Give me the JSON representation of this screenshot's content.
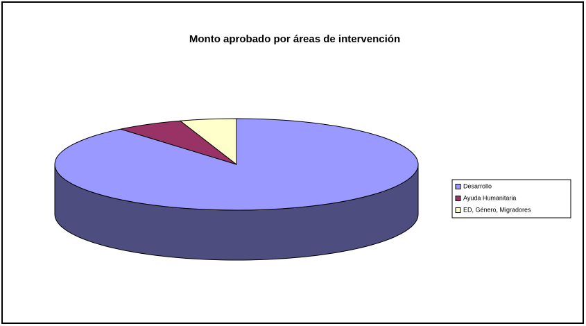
{
  "chart_data": {
    "type": "pie",
    "title": "Monto aprobado por áreas de intervención",
    "categories": [
      "Desarrollo",
      "Ayuda Humanitaria",
      "ED, Género, Migradores"
    ],
    "values": [
      89,
      6,
      5
    ],
    "colors": [
      "#9999ff",
      "#993366",
      "#ffffcc"
    ],
    "legend": "right"
  }
}
